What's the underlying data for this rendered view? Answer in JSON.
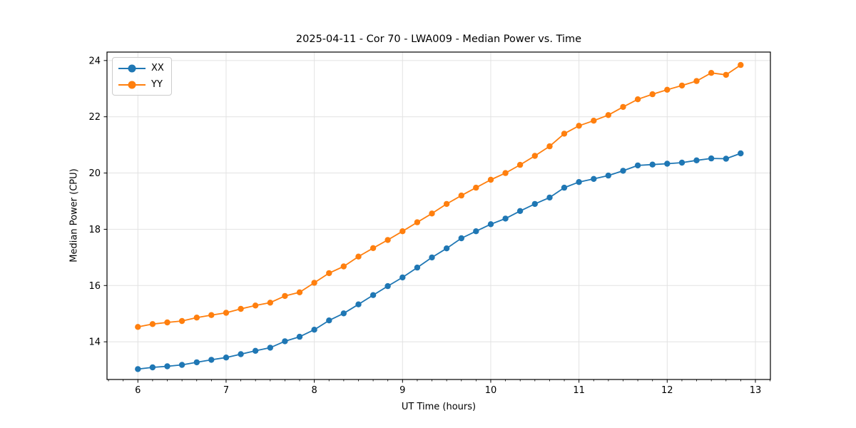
{
  "chart_data": {
    "type": "line",
    "title": "2025-04-11 - Cor 70 - LWA009 - Median Power vs. Time",
    "xlabel": "UT Time (hours)",
    "ylabel": "Median Power (CPU)",
    "xlim": [
      5.65,
      13.17
    ],
    "ylim": [
      12.66,
      24.3
    ],
    "x_ticks": [
      6,
      7,
      8,
      9,
      10,
      11,
      12,
      13
    ],
    "y_ticks": [
      14,
      16,
      18,
      20,
      22,
      24
    ],
    "x_minor_step": 0.16667,
    "grid": true,
    "grid_color": "#e2e2e2",
    "spine_color": "#000000",
    "background": "#ffffff",
    "legend_position": "upper left",
    "x": [
      6.0,
      6.167,
      6.333,
      6.5,
      6.667,
      6.833,
      7.0,
      7.167,
      7.333,
      7.5,
      7.667,
      7.833,
      8.0,
      8.167,
      8.333,
      8.5,
      8.667,
      8.833,
      9.0,
      9.167,
      9.333,
      9.5,
      9.667,
      9.833,
      10.0,
      10.167,
      10.333,
      10.5,
      10.667,
      10.833,
      11.0,
      11.167,
      11.333,
      11.5,
      11.667,
      11.833,
      12.0,
      12.167,
      12.333,
      12.5,
      12.667,
      12.833
    ],
    "series": [
      {
        "name": "XX",
        "color": "#1f77b4",
        "values": [
          13.03,
          13.09,
          13.13,
          13.18,
          13.27,
          13.36,
          13.44,
          13.56,
          13.68,
          13.79,
          14.02,
          14.18,
          14.43,
          14.76,
          15.01,
          15.33,
          15.66,
          15.98,
          16.29,
          16.64,
          17.0,
          17.32,
          17.68,
          17.93,
          18.18,
          18.38,
          18.65,
          18.9,
          19.13,
          19.48,
          19.68,
          19.79,
          19.91,
          20.08,
          20.27,
          20.3,
          20.33,
          20.37,
          20.45,
          20.52,
          20.51,
          20.7
        ]
      },
      {
        "name": "YY",
        "color": "#ff7f0e",
        "values": [
          14.53,
          14.63,
          14.69,
          14.74,
          14.86,
          14.95,
          15.03,
          15.17,
          15.29,
          15.39,
          15.63,
          15.76,
          16.1,
          16.44,
          16.68,
          17.03,
          17.33,
          17.62,
          17.93,
          18.25,
          18.56,
          18.9,
          19.2,
          19.48,
          19.76,
          20.0,
          20.29,
          20.61,
          20.95,
          21.4,
          21.68,
          21.86,
          22.06,
          22.35,
          22.62,
          22.8,
          22.96,
          23.11,
          23.27,
          23.56,
          23.49,
          23.84
        ]
      }
    ]
  }
}
